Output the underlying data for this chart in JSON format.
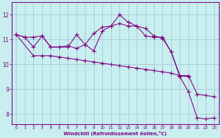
{
  "xlabel": "Windchill (Refroidissement éolien,°C)",
  "background_color": "#c8eef0",
  "grid_color": "#a0c8d0",
  "line_color": "#800080",
  "x_ticks": [
    0,
    1,
    2,
    3,
    4,
    5,
    6,
    7,
    8,
    9,
    10,
    11,
    12,
    13,
    14,
    15,
    16,
    17,
    18,
    19,
    20,
    21,
    22,
    23
  ],
  "y_ticks": [
    8,
    9,
    10,
    11,
    12
  ],
  "xlim": [
    -0.5,
    23.5
  ],
  "ylim": [
    7.6,
    12.5
  ],
  "series1_x": [
    0,
    1,
    2,
    3,
    4,
    5,
    6,
    7,
    8,
    9,
    10,
    11,
    12,
    13,
    14,
    15,
    16,
    17,
    18,
    19,
    20,
    21,
    22,
    23
  ],
  "series1_y": [
    11.2,
    11.1,
    10.7,
    11.15,
    10.7,
    10.7,
    10.7,
    11.2,
    10.8,
    10.55,
    11.35,
    11.55,
    12.0,
    11.7,
    11.55,
    11.15,
    11.1,
    11.1,
    10.5,
    9.5,
    8.9,
    7.85,
    7.8,
    7.85
  ],
  "series2_x": [
    0,
    1,
    2,
    3,
    4,
    5,
    6,
    7,
    8,
    9,
    10,
    11,
    12,
    13,
    14,
    15,
    16,
    17,
    18,
    19,
    20,
    21,
    22,
    23
  ],
  "series2_y": [
    11.2,
    11.1,
    11.1,
    11.15,
    10.7,
    10.7,
    10.75,
    10.65,
    10.8,
    11.25,
    11.5,
    11.55,
    11.65,
    11.55,
    11.55,
    11.45,
    11.15,
    11.05,
    10.5,
    9.55,
    9.55,
    8.8,
    8.75,
    8.7
  ],
  "series3_x": [
    0,
    2,
    3,
    4,
    5,
    6,
    7,
    8,
    9,
    10,
    11,
    12,
    13,
    14,
    15,
    16,
    17,
    18,
    19,
    20
  ],
  "series3_y": [
    11.2,
    10.35,
    10.35,
    10.35,
    10.3,
    10.25,
    10.2,
    10.15,
    10.1,
    10.05,
    10.0,
    9.95,
    9.9,
    9.85,
    9.8,
    9.75,
    9.7,
    9.65,
    9.55,
    9.5
  ]
}
